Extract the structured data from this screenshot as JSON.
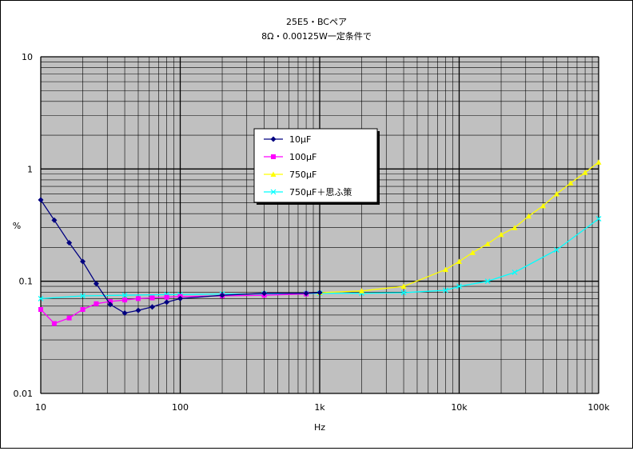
{
  "chart_data": {
    "type": "line",
    "title": "25E5・BCペア",
    "subtitle": "8Ω・0.00125W一定条件で",
    "xlabel": "Hz",
    "ylabel": "%",
    "xscale": "log",
    "yscale": "log",
    "xlim": [
      10,
      100000
    ],
    "ylim": [
      0.01,
      10
    ],
    "x_tick_labels": [
      "10",
      "100",
      "1k",
      "10k",
      "100k"
    ],
    "y_tick_labels": [
      "0.01",
      "0.1",
      "1",
      "10"
    ],
    "grid": true,
    "legend_position": "center",
    "series": [
      {
        "name": "10μF",
        "color": "#000080",
        "marker": "diamond",
        "x": [
          10,
          12.5,
          16,
          20,
          25,
          31.5,
          40,
          50,
          63,
          80,
          100,
          200,
          400,
          800,
          1000
        ],
        "y": [
          0.53,
          0.35,
          0.22,
          0.15,
          0.095,
          0.062,
          0.052,
          0.055,
          0.059,
          0.065,
          0.07,
          0.075,
          0.078,
          0.078,
          0.079
        ]
      },
      {
        "name": "100μF",
        "color": "#ff00ff",
        "marker": "square",
        "x": [
          10,
          12.5,
          16,
          20,
          25,
          31.5,
          40,
          50,
          63,
          80,
          100,
          200,
          400,
          800
        ],
        "y": [
          0.056,
          0.042,
          0.047,
          0.056,
          0.063,
          0.066,
          0.068,
          0.07,
          0.071,
          0.072,
          0.073,
          0.074,
          0.075,
          0.077
        ]
      },
      {
        "name": "750μF",
        "color": "#ffff00",
        "marker": "triangle",
        "x": [
          1000,
          2000,
          4000,
          8000,
          10000,
          12500,
          16000,
          20000,
          25000,
          31500,
          40000,
          50000,
          63000,
          80000,
          100000
        ],
        "y": [
          0.079,
          0.082,
          0.09,
          0.127,
          0.15,
          0.18,
          0.215,
          0.26,
          0.3,
          0.38,
          0.47,
          0.6,
          0.75,
          0.93,
          1.15
        ]
      },
      {
        "name": "750μF＋思ふ策",
        "color": "#00ffff",
        "marker": "x",
        "x": [
          10,
          20,
          40,
          80,
          100,
          200,
          400,
          800,
          1000,
          2000,
          4000,
          8000,
          10000,
          16000,
          25000,
          50000,
          100000
        ],
        "y": [
          0.07,
          0.074,
          0.075,
          0.076,
          0.076,
          0.077,
          0.077,
          0.078,
          0.078,
          0.078,
          0.079,
          0.083,
          0.09,
          0.1,
          0.12,
          0.19,
          0.36
        ]
      }
    ]
  }
}
